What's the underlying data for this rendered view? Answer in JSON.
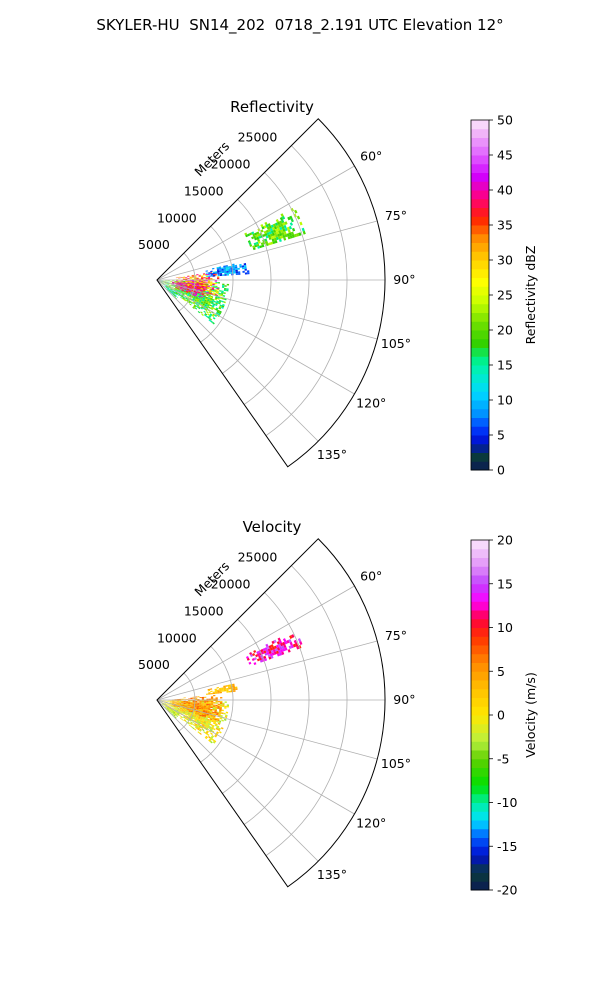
{
  "figure": {
    "title": "SKYLER-HU  SN14_202  0718_2.191 UTC Elevation 12°"
  },
  "chart_data": [
    {
      "type": "polar-sector-heatmap",
      "title": "Reflectivity",
      "range_axis_label": "Meters",
      "range_ticks": [
        5000,
        10000,
        15000,
        20000,
        25000
      ],
      "range_lim": [
        0,
        30000
      ],
      "azimuth_lim_deg": [
        45,
        145
      ],
      "azimuth_ticks_deg": [
        60,
        75,
        90,
        105,
        120,
        135
      ],
      "azimuth_tick_labels": [
        "60°",
        "75°",
        "90°",
        "105°",
        "120°",
        "135°"
      ],
      "grid": true,
      "colorbar": {
        "label": "Reflectivity dBZ",
        "min": 0,
        "max": 50,
        "ticks": [
          0,
          5,
          10,
          15,
          20,
          25,
          30,
          35,
          40,
          45,
          50
        ],
        "colormap": "pyart_NWSRef-like",
        "stops": [
          {
            "v": 0,
            "color": "#0b1a55"
          },
          {
            "v": 2,
            "color": "#0a3b3a"
          },
          {
            "v": 4,
            "color": "#000ecf"
          },
          {
            "v": 6,
            "color": "#003cff"
          },
          {
            "v": 8,
            "color": "#0090ff"
          },
          {
            "v": 11,
            "color": "#00d8ff"
          },
          {
            "v": 14,
            "color": "#00f0c0"
          },
          {
            "v": 16,
            "color": "#00f080"
          },
          {
            "v": 18,
            "color": "#30d000"
          },
          {
            "v": 21,
            "color": "#70e000"
          },
          {
            "v": 24,
            "color": "#c8ff00"
          },
          {
            "v": 27,
            "color": "#ffff00"
          },
          {
            "v": 30,
            "color": "#ffd000"
          },
          {
            "v": 33,
            "color": "#ff9000"
          },
          {
            "v": 36,
            "color": "#ff2000"
          },
          {
            "v": 39,
            "color": "#ff0080"
          },
          {
            "v": 42,
            "color": "#d000ff"
          },
          {
            "v": 45,
            "color": "#e060ff"
          },
          {
            "v": 48,
            "color": "#f0b0f8"
          },
          {
            "v": 50,
            "color": "#fbe8fb"
          }
        ]
      },
      "echo_regions": [
        {
          "az": [
            92,
            128
          ],
          "r": [
            500,
            9500
          ],
          "v": [
            14,
            24
          ]
        },
        {
          "az": [
            82,
            108
          ],
          "r": [
            2500,
            8000
          ],
          "v": [
            26,
            42
          ]
        },
        {
          "az": [
            95,
            112
          ],
          "r": [
            2000,
            6500
          ],
          "v": [
            34,
            44
          ]
        },
        {
          "az": [
            62,
            72
          ],
          "r": [
            13000,
            20500
          ],
          "v": [
            14,
            24
          ]
        },
        {
          "az": [
            78,
            86
          ],
          "r": [
            6500,
            12000
          ],
          "v": [
            4,
            12
          ]
        },
        {
          "az": [
            120,
            135
          ],
          "r": [
            1200,
            3500
          ],
          "v": [
            10,
            20
          ]
        }
      ]
    },
    {
      "type": "polar-sector-heatmap",
      "title": "Velocity",
      "range_axis_label": "Meters",
      "range_ticks": [
        5000,
        10000,
        15000,
        20000,
        25000
      ],
      "range_lim": [
        0,
        30000
      ],
      "azimuth_lim_deg": [
        45,
        145
      ],
      "azimuth_ticks_deg": [
        60,
        75,
        90,
        105,
        120,
        135
      ],
      "azimuth_tick_labels": [
        "60°",
        "75°",
        "90°",
        "105°",
        "120°",
        "135°"
      ],
      "grid": true,
      "colorbar": {
        "label": "Velocity (m/s)",
        "min": -20,
        "max": 20,
        "ticks": [
          -20,
          -15,
          -10,
          -5,
          0,
          5,
          10,
          15,
          20
        ],
        "colormap": "pyart_BuDRd-like",
        "stops": [
          {
            "v": -20,
            "color": "#0b1a55"
          },
          {
            "v": -18,
            "color": "#0a3b3a"
          },
          {
            "v": -16,
            "color": "#000ecf"
          },
          {
            "v": -14,
            "color": "#005aff"
          },
          {
            "v": -12,
            "color": "#00e0ff"
          },
          {
            "v": -10,
            "color": "#00f0a0"
          },
          {
            "v": -8,
            "color": "#00e000"
          },
          {
            "v": -5,
            "color": "#60d000"
          },
          {
            "v": -3,
            "color": "#b8f040"
          },
          {
            "v": 0,
            "color": "#ffe800"
          },
          {
            "v": 3,
            "color": "#ffc000"
          },
          {
            "v": 6,
            "color": "#ff8800"
          },
          {
            "v": 9,
            "color": "#ff3000"
          },
          {
            "v": 11,
            "color": "#ff0040"
          },
          {
            "v": 13,
            "color": "#ff00ff"
          },
          {
            "v": 15,
            "color": "#c040ff"
          },
          {
            "v": 17,
            "color": "#e090f8"
          },
          {
            "v": 20,
            "color": "#fbe8fb"
          }
        ]
      },
      "echo_regions": [
        {
          "az": [
            90,
            128
          ],
          "r": [
            500,
            9500
          ],
          "v": [
            -4,
            4
          ]
        },
        {
          "az": [
            85,
            110
          ],
          "r": [
            2000,
            8500
          ],
          "v": [
            2,
            8
          ]
        },
        {
          "az": [
            63,
            70
          ],
          "r": [
            13000,
            20500
          ],
          "v": [
            9,
            16
          ]
        },
        {
          "az": [
            120,
            135
          ],
          "r": [
            800,
            3500
          ],
          "v": [
            -5,
            0
          ]
        },
        {
          "az": [
            78,
            84
          ],
          "r": [
            6500,
            10500
          ],
          "v": [
            1,
            5
          ]
        }
      ]
    }
  ]
}
